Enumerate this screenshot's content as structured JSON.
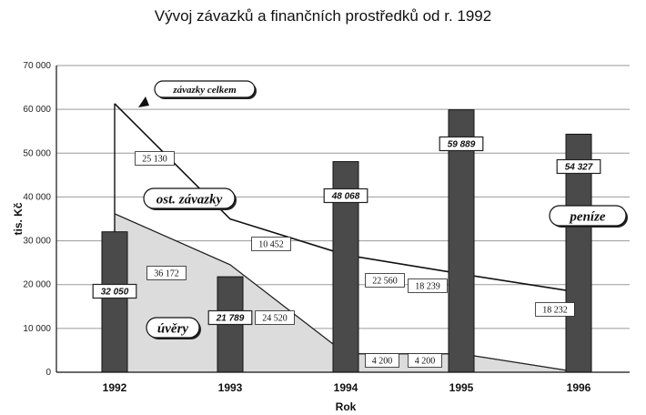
{
  "title": "Vývoj závazků a finančních prostředků od r. 1992",
  "chart_data": {
    "type": "bar",
    "title": "Vývoj závazků a finančních prostředků od r. 1992",
    "xlabel": "Rok",
    "ylabel": "tis. Kč",
    "ylim": [
      0,
      70000
    ],
    "yticks": [
      "0",
      "10 000",
      "20 000",
      "30 000",
      "40 000",
      "50 000",
      "60 000",
      "70 000"
    ],
    "categories": [
      "1992",
      "1993",
      "1994",
      "1995",
      "1996"
    ],
    "grid": true,
    "series": [
      {
        "name": "peníze",
        "type": "bar",
        "color": "#4a4a4a",
        "values": [
          32050,
          21789,
          48068,
          59889,
          54327
        ],
        "labels": [
          "32 050",
          "21 789",
          "48 068",
          "59 889",
          "54 327"
        ]
      },
      {
        "name": "úvěry",
        "type": "area",
        "color": "#dcdcdc",
        "values": [
          36172,
          24520,
          4200,
          4200,
          0
        ],
        "labels": [
          "36 172",
          "24 520",
          "4 200",
          "4 200",
          ""
        ]
      },
      {
        "name": "ost. závazky",
        "type": "area",
        "color": "#ffffff",
        "values": [
          25130,
          10452,
          22560,
          18239,
          18232
        ],
        "labels": [
          "25 130",
          "10 452",
          "22 560",
          "18 239",
          "18 232"
        ]
      },
      {
        "name": "závazky celkem",
        "type": "line",
        "color": "#111111",
        "values": [
          61302,
          34972,
          26760,
          22439,
          18232
        ]
      }
    ],
    "annotations": [
      "závazky celkem",
      "ost. závazky",
      "úvěry",
      "peníze"
    ]
  }
}
